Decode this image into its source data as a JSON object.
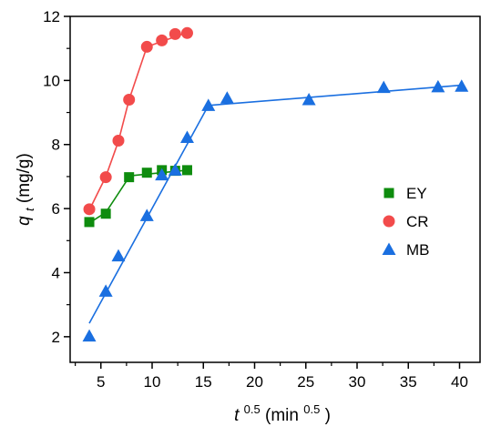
{
  "chart_data": {
    "type": "scatter",
    "xlabel": {
      "base": "t",
      "sup": "0.5",
      "unit_open": " (min",
      "unit_sup": "0.5",
      "unit_close": ")"
    },
    "ylabel": {
      "base": "q",
      "sub": "t",
      "unit": " (mg/g)"
    },
    "xlim": [
      2,
      42
    ],
    "ylim": [
      1.2,
      12
    ],
    "xticks": [
      5,
      10,
      15,
      20,
      25,
      30,
      35,
      40
    ],
    "yticks": [
      2,
      4,
      6,
      8,
      10,
      12
    ],
    "grid": false,
    "legend_position": "right-middle",
    "series": [
      {
        "name": "EY",
        "marker": "square",
        "color": "#0e8c0e",
        "x": [
          3.87,
          5.48,
          7.75,
          9.49,
          10.95,
          12.25,
          13.42
        ],
        "y": [
          5.58,
          5.84,
          6.98,
          7.12,
          7.2,
          7.18,
          7.2
        ],
        "fit": [
          {
            "x": [
              3.87,
              5.48,
              7.75
            ],
            "y": [
              5.55,
              5.88,
              6.98
            ]
          },
          {
            "x": [
              7.75,
              13.42
            ],
            "y": [
              7.02,
              7.2
            ]
          }
        ]
      },
      {
        "name": "CR",
        "marker": "circle",
        "color": "#f24b4b",
        "x": [
          3.87,
          5.48,
          6.71,
          7.75,
          9.49,
          10.95,
          12.25,
          13.42
        ],
        "y": [
          5.98,
          6.98,
          8.12,
          9.4,
          11.05,
          11.25,
          11.45,
          11.48
        ],
        "fit": [
          {
            "x": [
              3.87,
              5.48,
              6.71,
              7.75,
              9.49
            ],
            "y": [
              5.95,
              7.0,
              8.1,
              9.4,
              11.05
            ]
          },
          {
            "x": [
              9.49,
              13.42
            ],
            "y": [
              11.05,
              11.5
            ]
          }
        ]
      },
      {
        "name": "MB",
        "marker": "triangle",
        "color": "#1a6fe0",
        "x": [
          3.87,
          5.48,
          6.71,
          9.49,
          10.95,
          12.25,
          13.42,
          15.49,
          17.32,
          25.3,
          32.6,
          37.9,
          40.2
        ],
        "y": [
          2.02,
          3.42,
          4.52,
          5.78,
          7.05,
          7.2,
          8.22,
          9.22,
          9.45,
          9.4,
          9.78,
          9.8,
          9.82
        ],
        "fit": [
          {
            "x": [
              3.87,
              15.49
            ],
            "y": [
              2.42,
              9.22
            ]
          },
          {
            "x": [
              15.49,
              40.2
            ],
            "y": [
              9.22,
              9.85
            ]
          }
        ]
      }
    ]
  }
}
